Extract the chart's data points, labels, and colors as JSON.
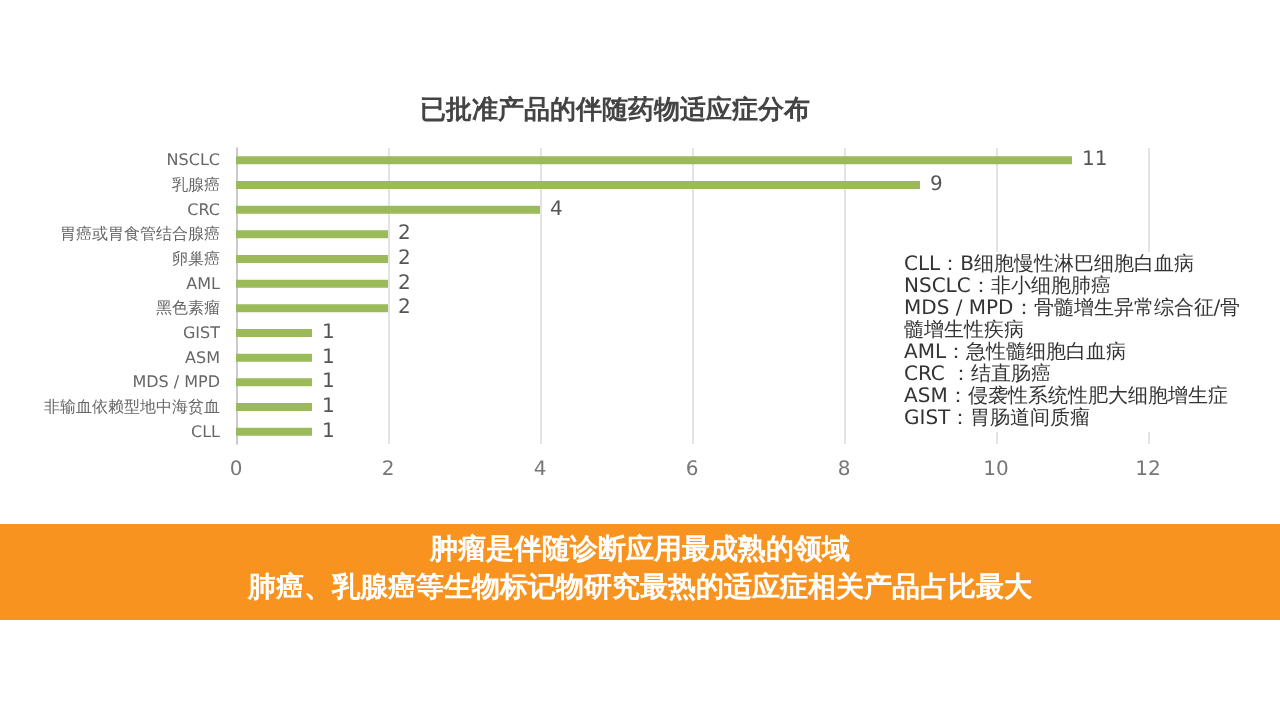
{
  "chart_data": {
    "type": "bar",
    "orientation": "horizontal",
    "title": "已批准产品的伴随药物适应症分布",
    "categories": [
      "NSCLC",
      "乳腺癌",
      "CRC",
      "胃癌或胃食管结合腺癌",
      "卵巢癌",
      "AML",
      "黑色素瘤",
      "GIST",
      "ASM",
      "MDS / MPD",
      "非输血依赖型地中海贫血",
      "CLL"
    ],
    "values": [
      11,
      9,
      4,
      2,
      2,
      2,
      2,
      1,
      1,
      1,
      1,
      1
    ],
    "color": "#9bba5a",
    "xlim": [
      0,
      12
    ],
    "xticks": [
      0,
      2,
      4,
      6,
      8,
      10,
      12
    ],
    "grid": "x",
    "data_labels": true,
    "annotations": [
      "CLL：B细胞慢性淋巴细胞白血病",
      "NSCLC：非小细胞肺癌",
      "MDS / MPD：骨髓增生异常综合征/骨髓增生性疾病",
      "AML：急性髓细胞白血病",
      "CRC ：结直肠癌",
      "ASM：侵袭性系统性肥大细胞增生症",
      "GIST：胃肠道间质瘤",
      "肿瘤是伴随诊断应用最成熟的领域",
      "肺癌、乳腺癌等生物标记物研究最热的适应症相关产品占比最大"
    ]
  }
}
